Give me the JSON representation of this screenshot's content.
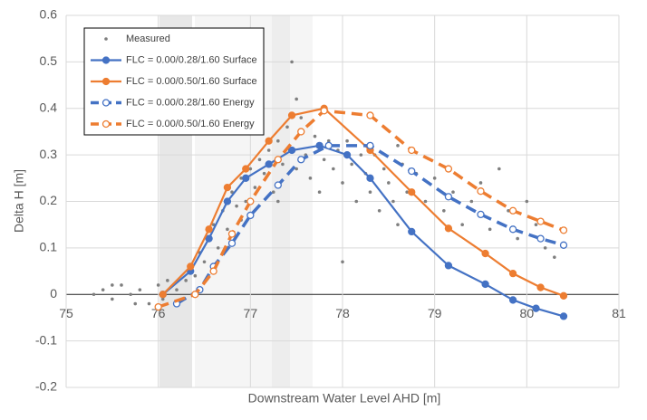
{
  "chart_data": {
    "type": "scatter-line",
    "xlabel": "Downstream Water Level AHD [m]",
    "ylabel": "Delta H [m]",
    "xlim": [
      75,
      81
    ],
    "xticks": [
      75,
      76,
      77,
      78,
      79,
      80,
      81
    ],
    "ylim": [
      -0.2,
      0.6
    ],
    "yticks": [
      -0.2,
      -0.1,
      0,
      0.1,
      0.2,
      0.3,
      0.4,
      0.5,
      0.6
    ],
    "grid": true,
    "legend": "upper left",
    "series": [
      {
        "name": "Measured",
        "color": "#7f7f7f",
        "kind": "scatter",
        "x": [
          75.3,
          75.4,
          75.5,
          75.6,
          75.7,
          75.8,
          75.9,
          76.0,
          76.1,
          76.2,
          75.5,
          75.75,
          76.05,
          76.3,
          76.35,
          76.4,
          76.45,
          76.5,
          76.55,
          76.6,
          76.65,
          76.7,
          76.75,
          76.8,
          76.85,
          76.9,
          76.95,
          77.0,
          77.05,
          77.1,
          77.15,
          77.2,
          77.25,
          77.3,
          77.35,
          77.4,
          77.45,
          77.5,
          77.55,
          77.6,
          77.65,
          77.7,
          77.75,
          77.8,
          77.85,
          77.9,
          77.95,
          78.0,
          78.05,
          78.1,
          78.15,
          78.2,
          78.25,
          78.3,
          78.35,
          78.4,
          78.45,
          78.5,
          78.55,
          78.6,
          78.65,
          78.7,
          78.8,
          78.9,
          79.0,
          79.1,
          79.2,
          79.3,
          79.4,
          79.5,
          79.6,
          79.7,
          79.8,
          79.9,
          80.0,
          80.1,
          80.2,
          80.3,
          78.0,
          77.3,
          77.5,
          76.9,
          78.6
        ],
        "values": [
          0.0,
          0.01,
          -0.01,
          0.02,
          0.0,
          0.01,
          -0.02,
          0.02,
          0.03,
          0.01,
          0.02,
          -0.02,
          -0.01,
          0.03,
          0.06,
          0.04,
          0.09,
          0.07,
          0.12,
          0.15,
          0.1,
          0.18,
          0.14,
          0.22,
          0.19,
          0.25,
          0.2,
          0.27,
          0.23,
          0.29,
          0.26,
          0.31,
          0.22,
          0.33,
          0.28,
          0.36,
          0.5,
          0.42,
          0.38,
          0.3,
          0.25,
          0.34,
          0.22,
          0.29,
          0.33,
          0.27,
          0.31,
          0.24,
          0.33,
          0.28,
          0.2,
          0.3,
          0.26,
          0.22,
          0.3,
          0.18,
          0.27,
          0.24,
          0.2,
          0.15,
          0.28,
          0.22,
          0.26,
          0.2,
          0.25,
          0.18,
          0.22,
          0.15,
          0.2,
          0.24,
          0.14,
          0.27,
          0.18,
          0.12,
          0.2,
          0.15,
          0.1,
          0.08,
          0.07,
          0.2,
          0.27,
          0.16,
          0.32
        ]
      },
      {
        "name": "FLC = 0.00/0.28/1.60 Surface",
        "color": "#4472c4",
        "kind": "line",
        "dash": false,
        "marker": "filled",
        "x": [
          76.05,
          76.35,
          76.55,
          76.75,
          76.95,
          77.2,
          77.45,
          77.75,
          78.05,
          78.3,
          78.75,
          79.15,
          79.55,
          79.85,
          80.1,
          80.4
        ],
        "values": [
          0.0,
          0.05,
          0.12,
          0.2,
          0.25,
          0.28,
          0.31,
          0.32,
          0.3,
          0.25,
          0.135,
          0.062,
          0.022,
          -0.012,
          -0.03,
          -0.047
        ]
      },
      {
        "name": "FLC = 0.00/0.50/1.60 Surface",
        "color": "#ed7d31",
        "kind": "line",
        "dash": false,
        "marker": "filled",
        "x": [
          76.05,
          76.35,
          76.55,
          76.75,
          76.95,
          77.2,
          77.45,
          77.8,
          78.3,
          78.75,
          79.15,
          79.55,
          79.85,
          80.15,
          80.4
        ],
        "values": [
          0.0,
          0.06,
          0.14,
          0.23,
          0.27,
          0.33,
          0.385,
          0.4,
          0.31,
          0.22,
          0.142,
          0.088,
          0.045,
          0.015,
          -0.003
        ]
      },
      {
        "name": "FLC = 0.00/0.28/1.60 Energy",
        "color": "#4472c4",
        "kind": "line",
        "dash": true,
        "marker": "open",
        "x": [
          76.2,
          76.45,
          76.6,
          76.8,
          77.0,
          77.3,
          77.55,
          77.85,
          78.3,
          78.75,
          79.15,
          79.5,
          79.85,
          80.15,
          80.4
        ],
        "values": [
          -0.02,
          0.01,
          0.06,
          0.11,
          0.17,
          0.235,
          0.29,
          0.32,
          0.32,
          0.265,
          0.21,
          0.172,
          0.14,
          0.12,
          0.106
        ]
      },
      {
        "name": "FLC = 0.00/0.50/1.60 Energy",
        "color": "#ed7d31",
        "kind": "line",
        "dash": true,
        "marker": "open",
        "x": [
          76.0,
          76.4,
          76.6,
          76.8,
          77.0,
          77.3,
          77.55,
          77.8,
          78.3,
          78.75,
          79.15,
          79.5,
          79.85,
          80.15,
          80.4
        ],
        "values": [
          -0.027,
          0.0,
          0.05,
          0.13,
          0.2,
          0.29,
          0.35,
          0.395,
          0.385,
          0.31,
          0.27,
          0.222,
          0.18,
          0.157,
          0.138
        ]
      }
    ]
  }
}
